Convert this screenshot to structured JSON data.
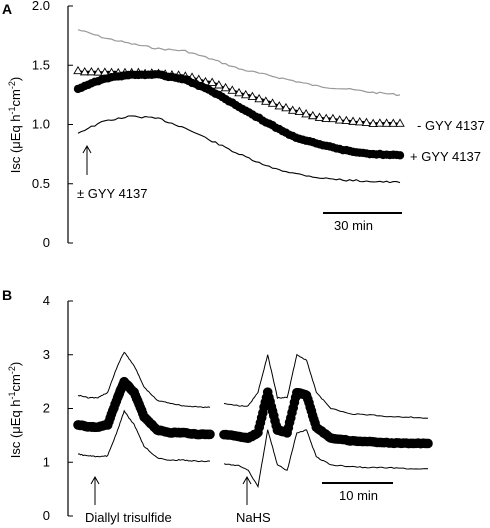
{
  "chart_data": [
    {
      "panel_label": "A",
      "type": "line",
      "ylabel_prefix": "Isc (μEq h",
      "ylabel_sup1": "-1",
      "ylabel_mid": "cm",
      "ylabel_sup2": "-2",
      "ylabel_suffix": ")",
      "ylim": [
        0,
        2.0
      ],
      "yticks": [
        "0",
        "0.5",
        "1.0",
        "1.5",
        "2.0"
      ],
      "xlim_min": [
        0,
        120
      ],
      "annotations": {
        "treatment": "± GYY 4137",
        "minus_label": "- GYY 4137",
        "plus_label": "+ GYY 4137",
        "scalebar": "30 min"
      },
      "series": [
        {
          "style": "upper-sd-gray",
          "x": [
            0,
            10,
            20,
            30,
            40,
            50,
            60,
            70,
            80,
            90,
            100,
            110,
            120
          ],
          "y": [
            1.8,
            1.73,
            1.68,
            1.64,
            1.62,
            1.55,
            1.47,
            1.42,
            1.37,
            1.32,
            1.3,
            1.27,
            1.25
          ]
        },
        {
          "style": "triangles",
          "x": [
            0,
            10,
            20,
            30,
            40,
            50,
            60,
            70,
            80,
            90,
            100,
            110,
            120
          ],
          "y": [
            1.45,
            1.44,
            1.44,
            1.43,
            1.41,
            1.35,
            1.27,
            1.2,
            1.12,
            1.06,
            1.03,
            1.01,
            1.01
          ]
        },
        {
          "style": "circles",
          "x": [
            0,
            10,
            20,
            30,
            40,
            50,
            60,
            70,
            80,
            90,
            100,
            110,
            120
          ],
          "y": [
            1.3,
            1.39,
            1.42,
            1.42,
            1.38,
            1.28,
            1.15,
            1.02,
            0.9,
            0.83,
            0.78,
            0.75,
            0.74
          ]
        },
        {
          "style": "lower-sd-black",
          "x": [
            0,
            10,
            20,
            30,
            40,
            50,
            60,
            70,
            80,
            90,
            100,
            110,
            120
          ],
          "y": [
            0.93,
            1.03,
            1.07,
            1.05,
            0.97,
            0.86,
            0.75,
            0.65,
            0.59,
            0.55,
            0.53,
            0.52,
            0.51
          ]
        }
      ]
    },
    {
      "panel_label": "B",
      "type": "line",
      "ylabel_prefix": "Isc (μEq h",
      "ylabel_sup1": "-1",
      "ylabel_mid": "cm",
      "ylabel_sup2": "-2",
      "ylabel_suffix": ")",
      "ylim": [
        0,
        4
      ],
      "yticks": [
        "0",
        "1",
        "2",
        "3",
        "4"
      ],
      "annotations": {
        "first": "Diallyl trisulfide",
        "second": "NaHS",
        "scalebar": "10 min"
      },
      "segment1": {
        "x": [
          0,
          3,
          6,
          9,
          12,
          14,
          17,
          20,
          24,
          28,
          32,
          36,
          40
        ],
        "mean": [
          1.7,
          1.66,
          1.65,
          1.7,
          2.2,
          2.5,
          2.3,
          1.85,
          1.6,
          1.55,
          1.55,
          1.52,
          1.52
        ],
        "upper": [
          2.25,
          2.2,
          2.2,
          2.3,
          2.8,
          3.05,
          2.8,
          2.4,
          2.15,
          2.1,
          2.05,
          2.03,
          2.02
        ],
        "lower": [
          1.15,
          1.12,
          1.1,
          1.12,
          1.6,
          1.95,
          1.7,
          1.3,
          1.08,
          1.04,
          1.04,
          1.02,
          1.02
        ]
      },
      "segment2": {
        "x": [
          0,
          3,
          5,
          7,
          9,
          11,
          13,
          15,
          17,
          19,
          22,
          26,
          30,
          34,
          38,
          42
        ],
        "mean": [
          1.52,
          1.48,
          1.45,
          1.55,
          2.3,
          1.6,
          1.55,
          2.3,
          2.25,
          1.65,
          1.45,
          1.4,
          1.38,
          1.36,
          1.35,
          1.35
        ],
        "upper": [
          2.1,
          2.05,
          2.05,
          2.3,
          3.0,
          2.2,
          2.2,
          3.0,
          2.9,
          2.3,
          2.0,
          1.9,
          1.88,
          1.85,
          1.84,
          1.82
        ],
        "lower": [
          0.97,
          0.94,
          0.85,
          0.55,
          1.6,
          0.95,
          0.85,
          1.55,
          1.6,
          1.1,
          0.95,
          0.92,
          0.9,
          0.9,
          0.88,
          0.88
        ]
      }
    }
  ]
}
